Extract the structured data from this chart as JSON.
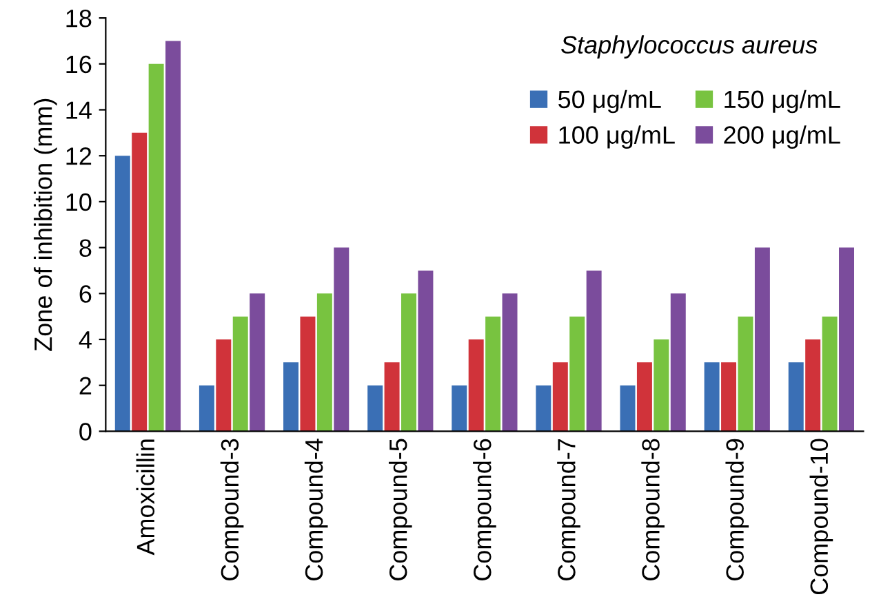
{
  "chart_data": {
    "type": "bar",
    "title": "Staphylococcus aureus",
    "ylabel": "Zone of inhibition (mm)",
    "categories": [
      "Amoxicillin",
      "Compound-3",
      "Compound-4",
      "Compound-5",
      "Compound-6",
      "Compound-7",
      "Compound-8",
      "Compound-9",
      "Compound-10"
    ],
    "series": [
      {
        "name": "50 μg/mL",
        "color": "#3a6fb5",
        "values": [
          12,
          2,
          3,
          2,
          2,
          2,
          2,
          3,
          3
        ]
      },
      {
        "name": "100 μg/mL",
        "color": "#d0333a",
        "values": [
          13,
          4,
          5,
          3,
          4,
          3,
          3,
          3,
          4
        ]
      },
      {
        "name": "150 μg/mL",
        "color": "#78c340",
        "values": [
          16,
          5,
          6,
          6,
          5,
          5,
          4,
          5,
          5
        ]
      },
      {
        "name": "200 μg/mL",
        "color": "#7b4c9c",
        "values": [
          17,
          6,
          8,
          7,
          6,
          7,
          6,
          8,
          8
        ]
      }
    ],
    "ylim": [
      0,
      18
    ],
    "yticks": [
      0,
      2,
      4,
      6,
      8,
      10,
      12,
      14,
      16,
      18
    ],
    "grid": false,
    "legend": "top right"
  }
}
